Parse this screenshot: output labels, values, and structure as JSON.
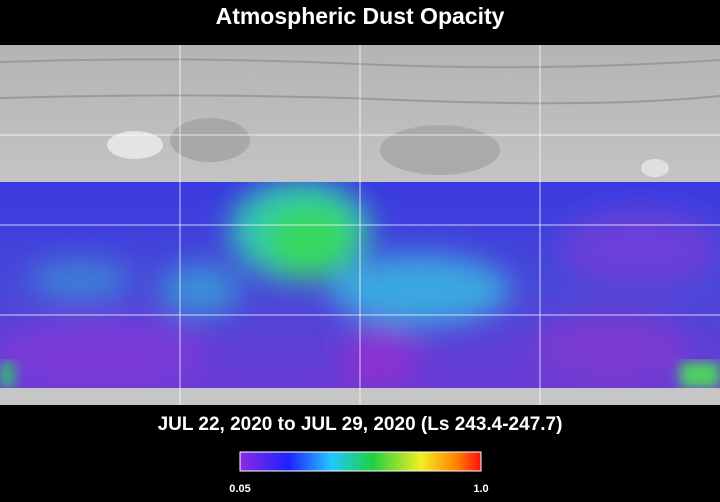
{
  "title": "Atmospheric Dust Opacity",
  "subtitle": "JUL 22, 2020 to JUL 29, 2020 (Ls 243.4-247.7)",
  "colorbar": {
    "min_label": "0.05",
    "max_label": "1.0"
  }
}
